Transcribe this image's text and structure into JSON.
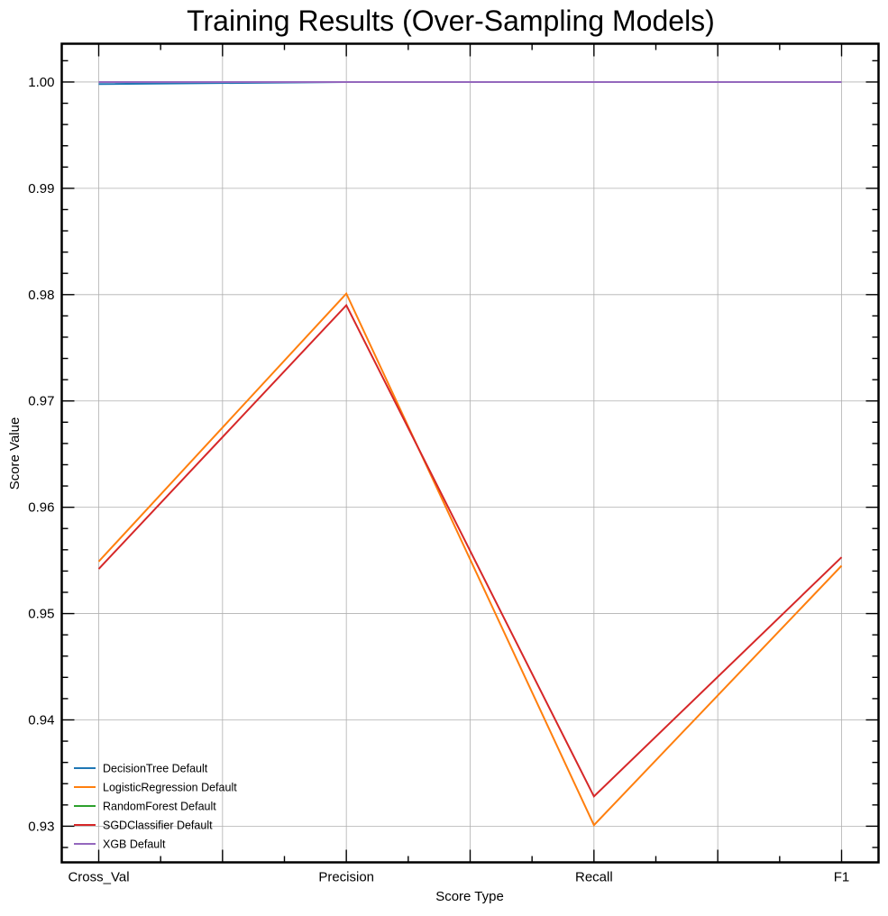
{
  "chart_data": {
    "type": "line",
    "title": "Training Results (Over-Sampling Models)",
    "xlabel": "Score Type",
    "ylabel": "Score Value",
    "categories": [
      "Cross_Val",
      "Precision",
      "Recall",
      "F1"
    ],
    "ylim": [
      0.9266,
      1.0036
    ],
    "yticks": [
      0.93,
      0.94,
      0.95,
      0.96,
      0.97,
      0.98,
      0.99,
      1.0
    ],
    "ytick_labels": [
      "0.93",
      "0.94",
      "0.95",
      "0.96",
      "0.97",
      "0.98",
      "0.99",
      "1.00"
    ],
    "grid": true,
    "legend_position": "lower-left",
    "series": [
      {
        "name": "DecisionTree Default",
        "color": "#1f77b4",
        "values": [
          0.9998,
          1.0,
          1.0,
          1.0
        ]
      },
      {
        "name": "LogisticRegression Default",
        "color": "#ff7f0e",
        "values": [
          0.9549,
          0.9801,
          0.9301,
          0.9545
        ]
      },
      {
        "name": "RandomForest Default",
        "color": "#2ca02c",
        "values": [
          1.0,
          1.0,
          1.0,
          1.0
        ]
      },
      {
        "name": "SGDClassifier Default",
        "color": "#d62728",
        "values": [
          0.9542,
          0.979,
          0.9328,
          0.9553
        ]
      },
      {
        "name": "XGB Default",
        "color": "#9467bd",
        "values": [
          1.0,
          1.0,
          1.0,
          1.0
        ]
      }
    ]
  }
}
